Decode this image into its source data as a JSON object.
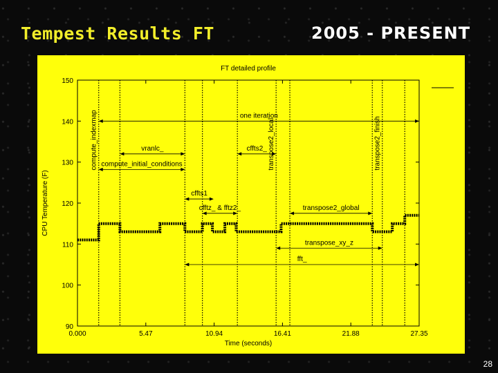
{
  "slide": {
    "title": "Tempest Results FT",
    "era": "2005 - PRESENT",
    "page_number": "28"
  },
  "colors": {
    "panel": "#ffff0a",
    "title": "#f2ee2a",
    "ink": "#000000"
  },
  "chart_data": {
    "type": "line",
    "title": "FT detailed profile",
    "xlabel": "Time (seconds)",
    "ylabel": "CPU Temperature (F)",
    "xlim": [
      0,
      27.35
    ],
    "ylim": [
      90,
      150
    ],
    "xticks": [
      0,
      5.47,
      10.94,
      16.41,
      21.88,
      27.35
    ],
    "xtick_labels": [
      "0.000",
      "5.47",
      "10.94",
      "16.41",
      "21.88",
      "27.35"
    ],
    "yticks": [
      90,
      100,
      110,
      120,
      130,
      140,
      150
    ],
    "grid": false,
    "legend": "top-right",
    "series": [
      {
        "x": [
          0,
          1.7,
          1.7,
          3.4,
          3.4,
          6.6,
          6.6,
          8.6,
          8.6,
          10.0,
          10.0,
          10.8,
          10.8,
          11.8,
          11.8,
          12.7,
          12.7,
          16.3,
          16.3,
          23.6,
          23.6,
          25.2,
          25.2,
          26.2,
          26.2,
          27.35
        ],
        "y": [
          111,
          111,
          115,
          115,
          113,
          113,
          115,
          115,
          113,
          113,
          115,
          115,
          113,
          113,
          115,
          115,
          113,
          113,
          115,
          115,
          113,
          113,
          115,
          115,
          117,
          117
        ]
      }
    ],
    "markers": [
      1.7,
      3.4,
      8.6,
      10.0,
      12.8,
      15.9,
      17.0,
      23.6,
      24.4,
      26.2
    ],
    "annotations": [
      {
        "text": "one iteration",
        "x1": 1.7,
        "x2": 27.35,
        "y": 140
      },
      {
        "text": "vranlc_",
        "x1": 3.4,
        "x2": 8.6,
        "y": 132
      },
      {
        "text": "cffts2_",
        "x1": 12.8,
        "x2": 15.9,
        "y": 132
      },
      {
        "text": "compute_initial_conditions",
        "x1": 1.7,
        "x2": 8.6,
        "y": 128.2
      },
      {
        "text": "cffts1",
        "x1": 8.6,
        "x2": 10.9,
        "y": 121
      },
      {
        "text": "cfftz_ & fftz2_",
        "x1": 10.0,
        "x2": 12.8,
        "y": 117.5
      },
      {
        "text": "transpose2_global",
        "x1": 17.0,
        "x2": 23.6,
        "y": 117.5
      },
      {
        "text": "transpose_xy_z",
        "x1": 15.9,
        "x2": 24.4,
        "y": 109
      },
      {
        "text": "fft_",
        "x1": 8.6,
        "x2": 27.35,
        "y": 105
      }
    ],
    "vertical_labels": [
      {
        "text": "compute_indexmap",
        "x": 1.7
      },
      {
        "text": "transpose2_local",
        "x": 15.9
      },
      {
        "text": "transpose2_finish",
        "x": 24.4
      }
    ]
  }
}
